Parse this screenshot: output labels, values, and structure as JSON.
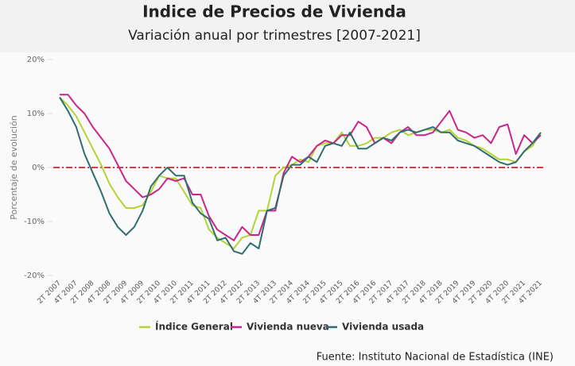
{
  "chart_data": {
    "type": "line",
    "title": "Indice de Precios de Vivienda",
    "subtitle": "Variación anual por trimestres [2007-2021]",
    "y_label": "Porcentaje de evolución",
    "source": "Fuente: Instituto Nacional de Estadística (INE)",
    "categories": [
      "2T 2007",
      null,
      "4T 2007",
      null,
      "2T 2008",
      null,
      "4T 2008",
      null,
      "2T 2009",
      null,
      "4T 2009",
      null,
      "2T 2010",
      null,
      "4T 2010",
      null,
      "2T 2011",
      null,
      "4T 2011",
      null,
      "2T 2012",
      null,
      "4T 2012",
      null,
      "2T 2013",
      null,
      "4T 2013",
      null,
      "2T 2014",
      null,
      "4T 2014",
      null,
      "2T 2015",
      null,
      "4T 2015",
      null,
      "2T 2016",
      null,
      "4T 2016",
      null,
      "2T 2017",
      null,
      "4T 2017",
      null,
      "2T 2018",
      null,
      "4T 2018",
      null,
      "2T 2019",
      null,
      "4T 2019",
      null,
      "2T 2020",
      null,
      "4T 2020",
      null,
      "2T 2021",
      null,
      "4T 2021"
    ],
    "series": [
      {
        "name": "Índice General",
        "color": "#b5d334",
        "values": [
          13,
          11.5,
          9.5,
          6.5,
          3.5,
          0.5,
          -3,
          -5.5,
          -7.5,
          -7.5,
          -7,
          -4.5,
          -1.5,
          -2,
          -2,
          -4.5,
          -7,
          -7.5,
          -11.5,
          -13,
          -14,
          -15,
          -13,
          -12.5,
          -8,
          -8,
          -1.5,
          0,
          0.5,
          1.5,
          1,
          4,
          4.5,
          4.5,
          6.5,
          4,
          4,
          4.5,
          5.5,
          5.5,
          6.5,
          7,
          6,
          6.5,
          7,
          7,
          6.5,
          7,
          5.5,
          5,
          4,
          3.5,
          2.5,
          1.5,
          1.5,
          1,
          3,
          4,
          6.5
        ]
      },
      {
        "name": "Vivienda nueva",
        "color": "#c9258b",
        "values": [
          13.5,
          13.5,
          11.5,
          10,
          7.5,
          5.5,
          3.5,
          0.5,
          -2.5,
          -4,
          -5.5,
          -5,
          -4,
          -2,
          -2.5,
          -2,
          -5,
          -5,
          -9,
          -11.5,
          -12.5,
          -13.5,
          -11,
          -12.5,
          -12.5,
          -8,
          -8,
          -1,
          2,
          1,
          2,
          4,
          5,
          4.5,
          6,
          6,
          8.5,
          7.5,
          4.5,
          5.5,
          4.5,
          6.5,
          7.5,
          6,
          6,
          6.5,
          8.5,
          10.5,
          7,
          6.5,
          5.5,
          6,
          4.5,
          7.5,
          8,
          2.5,
          6,
          4.5,
          6
        ]
      },
      {
        "name": "Vivienda usada",
        "color": "#2e6e6e",
        "values": [
          13,
          10.5,
          7.5,
          2.5,
          -1,
          -4.5,
          -8.5,
          -11,
          -12.5,
          -11,
          -8,
          -3.5,
          -1.5,
          0,
          -1.5,
          -1.5,
          -6.5,
          -8.5,
          -9.5,
          -13.5,
          -13,
          -15.5,
          -16,
          -14,
          -15,
          -8,
          -7.5,
          -1.5,
          0.5,
          0.5,
          2,
          1,
          4,
          4.5,
          4,
          6.5,
          3.5,
          3.5,
          4.5,
          5.5,
          5,
          6.5,
          7,
          6.5,
          7,
          7.5,
          6.5,
          6.5,
          5,
          4.5,
          4,
          3,
          2,
          1,
          0.5,
          1,
          3,
          4.5,
          6.5
        ]
      }
    ],
    "ylim": [
      -20,
      20
    ],
    "yticks": [
      {
        "value": 20,
        "label": "20%"
      },
      {
        "value": 10,
        "label": "10%"
      },
      {
        "value": 0,
        "label": "0%"
      },
      {
        "value": -10,
        "label": "-10%"
      },
      {
        "value": -20,
        "label": "-20%"
      }
    ],
    "zero_line_color": "#cc0000",
    "legend": "bottom"
  }
}
